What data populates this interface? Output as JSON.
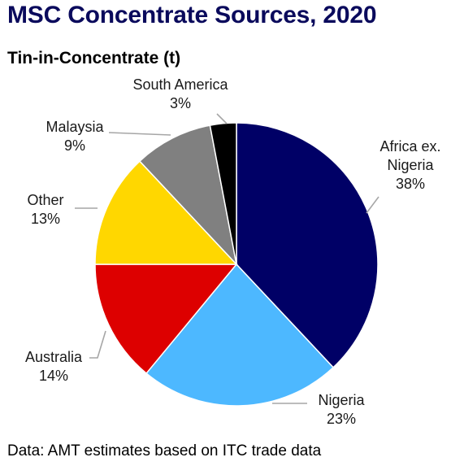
{
  "title": "MSC Concentrate Sources, 2020",
  "subtitle": "Tin-in-Concentrate (t)",
  "source_note": "Data: AMT estimates based on ITC trade data",
  "chart_data": {
    "type": "pie",
    "title": "MSC Concentrate Sources, 2020",
    "subtitle": "Tin-in-Concentrate (t)",
    "unit": "%",
    "start_angle_deg": 0,
    "direction": "clockwise",
    "slices": [
      {
        "label": [
          "Africa ex.",
          "Nigeria"
        ],
        "value": 38,
        "display": "38%",
        "color": "#000066"
      },
      {
        "label": [
          "Nigeria"
        ],
        "value": 23,
        "display": "23%",
        "color": "#4db8ff"
      },
      {
        "label": [
          "Australia"
        ],
        "value": 14,
        "display": "14%",
        "color": "#dd0000"
      },
      {
        "label": [
          "Other"
        ],
        "value": 13,
        "display": "13%",
        "color": "#ffd700"
      },
      {
        "label": [
          "Malaysia"
        ],
        "value": 9,
        "display": "9%",
        "color": "#808080"
      },
      {
        "label": [
          "South America"
        ],
        "value": 3,
        "display": "3%",
        "color": "#000000"
      }
    ]
  }
}
